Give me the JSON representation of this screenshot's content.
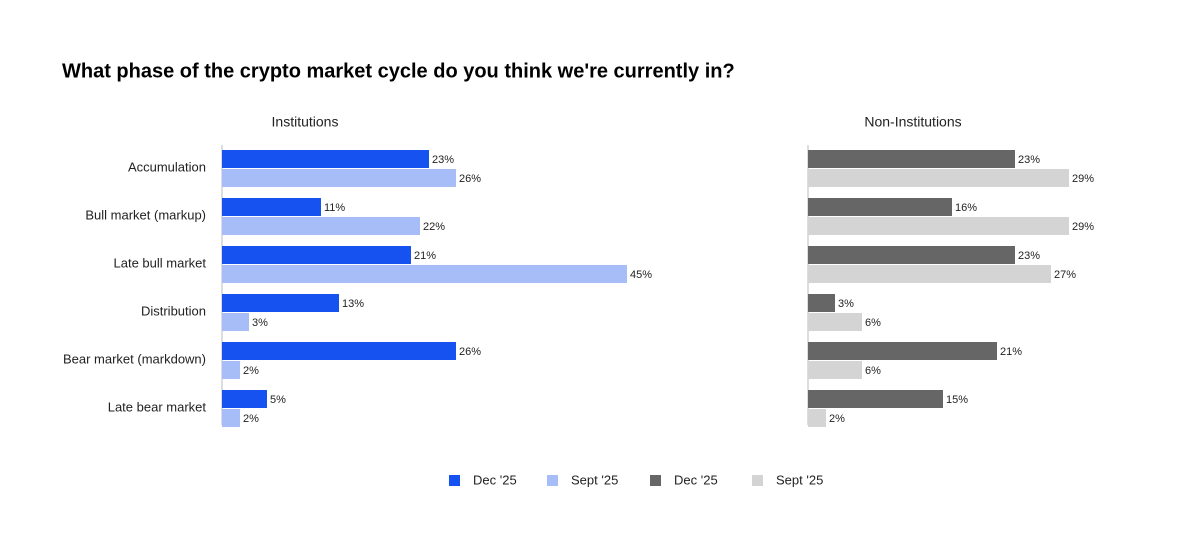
{
  "title": "What phase of the crypto market cycle do you think we're currently in?",
  "chart_data": [
    {
      "type": "hbar",
      "subtitle": "Institutions",
      "categories": [
        "Accumulation",
        "Bull market (markup)",
        "Late bull market",
        "Distribution",
        "Bear market (markdown)",
        "Late bear market"
      ],
      "series": [
        {
          "name": "Dec '25",
          "color": "#1652f0",
          "values": [
            23,
            11,
            21,
            13,
            26,
            5
          ],
          "value_labels": [
            "23%",
            "11%",
            "21%",
            "13%",
            "26%",
            "5%"
          ]
        },
        {
          "name": "Sept '25",
          "color": "#a6bdf8",
          "values": [
            26,
            22,
            45,
            3,
            2,
            2
          ],
          "value_labels": [
            "26%",
            "22%",
            "45%",
            "3%",
            "2%",
            "2%"
          ]
        }
      ]
    },
    {
      "type": "hbar",
      "subtitle": "Non-Institutions",
      "series": [
        {
          "name": "Dec '25",
          "color": "#666666",
          "values": [
            23,
            16,
            23,
            3,
            21,
            15
          ],
          "value_labels": [
            "23%",
            "16%",
            "23%",
            "3%",
            "21%",
            "15%"
          ]
        },
        {
          "name": "Sept '25",
          "color": "#d4d4d4",
          "values": [
            29,
            29,
            27,
            6,
            6,
            2
          ],
          "value_labels": [
            "29%",
            "29%",
            "27%",
            "6%",
            "6%",
            "2%"
          ]
        }
      ]
    }
  ]
}
